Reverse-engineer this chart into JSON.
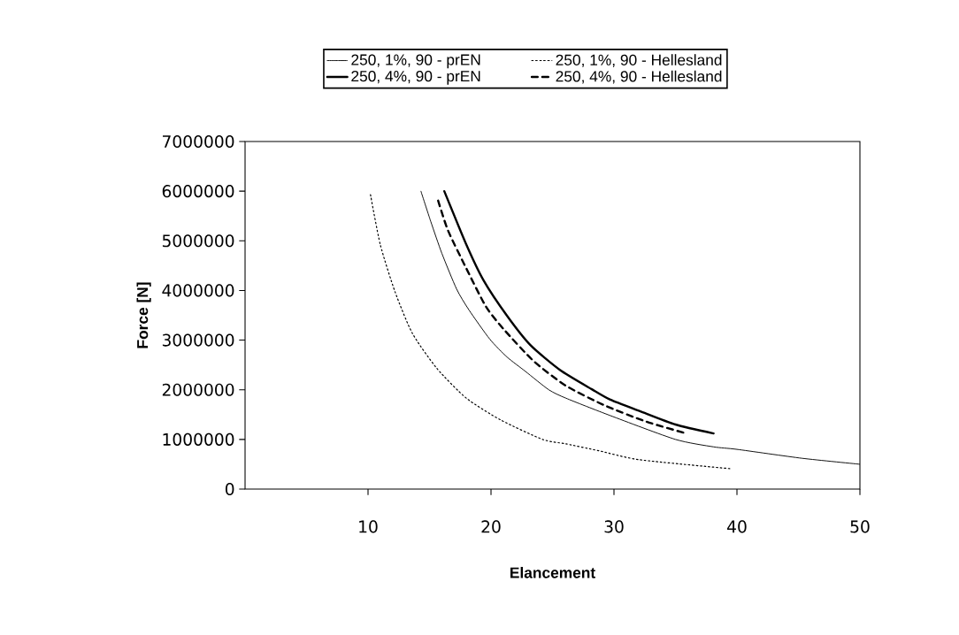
{
  "chart_data": {
    "type": "line",
    "xlabel": "Elancement",
    "ylabel": "Force [N]",
    "xlim": [
      0,
      50
    ],
    "ylim": [
      0,
      7000000
    ],
    "xticks": [
      10,
      20,
      30,
      40,
      50
    ],
    "yticks": [
      0,
      1000000,
      2000000,
      3000000,
      4000000,
      5000000,
      6000000,
      7000000
    ],
    "grid": false,
    "legend": "top",
    "marker": "none",
    "series": [
      {
        "name": "250, 1%, 90 - prEN",
        "color": "#000000",
        "line_style": "solid",
        "x": [
          14.3,
          15.1,
          16.0,
          17.2,
          18.2,
          19.9,
          21.3,
          22.8,
          24.7,
          26.1,
          29.7,
          35.0,
          38.1,
          40.0,
          45.3,
          50.0
        ],
        "values": [
          6000000,
          5390000,
          4750000,
          4030000,
          3610000,
          3020000,
          2660000,
          2370000,
          2000000,
          1830000,
          1480000,
          1000000,
          850000,
          800000,
          620000,
          500000
        ]
      },
      {
        "name": "250, 1%, 90 - Hellesland",
        "color": "#000000",
        "line_style": "dotted",
        "x": [
          10.2,
          11.0,
          12.2,
          13.6,
          15.6,
          18.0,
          20.8,
          24.2,
          26.1,
          28.8,
          32.1,
          39.5
        ],
        "values": [
          5930000,
          4920000,
          3970000,
          3140000,
          2430000,
          1830000,
          1390000,
          1000000,
          910000,
          770000,
          590000,
          410000
        ]
      },
      {
        "name": "250, 4%, 90 - prEN",
        "color": "#000000",
        "line_style": "solid",
        "x": [
          16.2,
          18.0,
          19.4,
          21.3,
          23.2,
          25.6,
          28.2,
          29.7,
          32.1,
          35.0,
          38.1
        ],
        "values": [
          6000000,
          4920000,
          4200000,
          3490000,
          2900000,
          2400000,
          2010000,
          1800000,
          1570000,
          1300000,
          1120000
        ]
      },
      {
        "name": "250, 4%, 90 - Hellesland",
        "color": "#000000",
        "line_style": "dashed",
        "x": [
          15.7,
          16.5,
          18.0,
          19.6,
          21.1,
          23.5,
          26.1,
          29.2,
          32.6,
          35.9
        ],
        "values": [
          5810000,
          5210000,
          4440000,
          3670000,
          3200000,
          2570000,
          2080000,
          1690000,
          1360000,
          1120000
        ]
      }
    ]
  }
}
